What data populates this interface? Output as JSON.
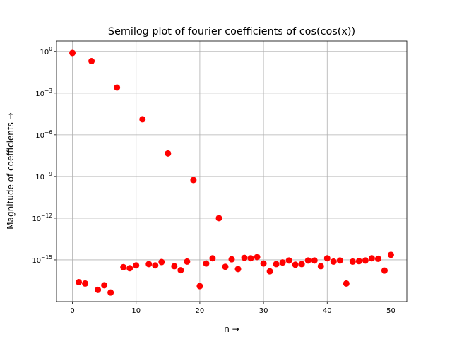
{
  "chart_data": {
    "type": "scatter",
    "title": "Semilog plot of fourier coefficients of cos(cos(x))",
    "xlabel": "n →",
    "ylabel": "Magnitude of coefficients →",
    "yscale": "log",
    "xlim": [
      -2.5,
      52.5
    ],
    "ylim_log10": [
      -18.0,
      0.75
    ],
    "grid": true,
    "marker_color": "#ff0000",
    "xticks": [
      0,
      10,
      20,
      30,
      40,
      50
    ],
    "yticks": [
      {
        "exp": 0,
        "label": "10^0"
      },
      {
        "exp": -3,
        "label": "10^-3"
      },
      {
        "exp": -6,
        "label": "10^-6"
      },
      {
        "exp": -9,
        "label": "10^-9"
      },
      {
        "exp": -12,
        "label": "10^-12"
      },
      {
        "exp": -15,
        "label": "10^-15"
      }
    ],
    "series": [
      {
        "x": [
          0,
          1,
          2,
          3,
          4,
          5,
          6,
          7,
          8,
          9,
          10,
          11,
          12,
          13,
          14,
          15,
          16,
          17,
          18,
          19,
          20,
          21,
          22,
          23,
          24,
          25,
          26,
          27,
          28,
          29,
          30,
          31,
          32,
          33,
          34,
          35,
          36,
          37,
          38,
          39,
          40,
          41,
          42,
          43,
          44,
          45,
          46,
          47,
          48,
          49,
          50
        ],
        "y": [
          0.77,
          2.5e-17,
          2e-17,
          0.2,
          7e-18,
          1.5e-17,
          4.5e-18,
          0.0025,
          3e-16,
          2.5e-16,
          4e-16,
          1.3e-05,
          5e-16,
          4e-16,
          7e-16,
          4.5e-08,
          3.5e-16,
          1.8e-16,
          7.5e-16,
          5.5e-10,
          1.3e-17,
          5.5e-16,
          1.3e-15,
          1e-12,
          3.2e-16,
          1.1e-15,
          2.2e-16,
          1.4e-15,
          1.3e-15,
          1.6e-15,
          5.5e-16,
          1.5e-16,
          5e-16,
          6.5e-16,
          9e-16,
          4.5e-16,
          5e-16,
          9e-16,
          9e-16,
          3.5e-16,
          1.3e-15,
          7.5e-16,
          9e-16,
          2e-17,
          7.5e-16,
          8e-16,
          9e-16,
          1.3e-15,
          1.2e-15,
          1.7e-16,
          2.3e-15
        ]
      }
    ]
  }
}
